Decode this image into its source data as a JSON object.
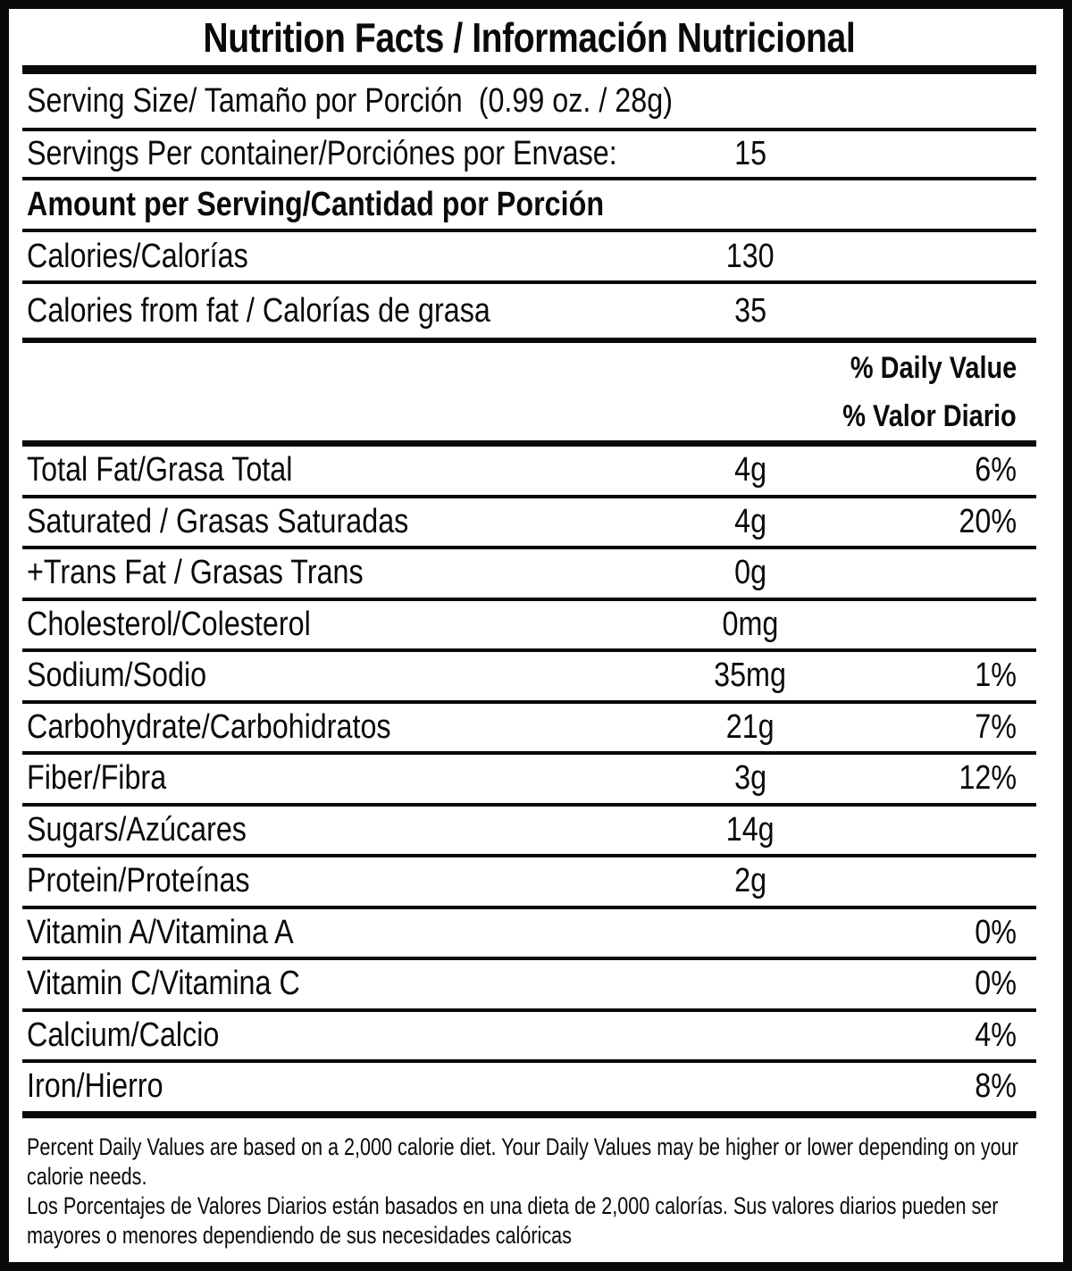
{
  "label": {
    "title": "Nutrition Facts / Información Nutricional",
    "serving_size": "Serving Size/ Tamaño por Porción  (0.99 oz. / 28g)",
    "servings_per_container": {
      "label": "Servings Per container/Porciónes por Envase:",
      "value": "15"
    },
    "amount_per_serving": "Amount per Serving/Cantidad por Porción",
    "calories": {
      "label": "Calories/Calorías",
      "value": "130"
    },
    "calories_from_fat": {
      "label": "Calories from fat / Calorías de grasa",
      "value": "35"
    },
    "daily_value_header_en": "% Daily Value",
    "daily_value_header_es": "% Valor Diario",
    "nutrients": [
      {
        "label": "Total Fat/Grasa Total",
        "amount": "4g",
        "dv": "6%"
      },
      {
        "label": "Saturated / Grasas Saturadas",
        "amount": "4g",
        "dv": "20%"
      },
      {
        "label": "+Trans Fat / Grasas Trans",
        "amount": "0g",
        "dv": ""
      },
      {
        "label": "Cholesterol/Colesterol",
        "amount": "0mg",
        "dv": ""
      },
      {
        "label": "Sodium/Sodio",
        "amount": "35mg",
        "dv": "1%"
      },
      {
        "label": "Carbohydrate/Carbohidratos",
        "amount": "21g",
        "dv": "7%"
      },
      {
        "label": "Fiber/Fibra",
        "amount": "3g",
        "dv": "12%"
      },
      {
        "label": "Sugars/Azúcares",
        "amount": "14g",
        "dv": ""
      },
      {
        "label": "Protein/Proteínas",
        "amount": "2g",
        "dv": ""
      },
      {
        "label": "Vitamin A/Vitamina A",
        "amount": "",
        "dv": "0%"
      },
      {
        "label": "Vitamin C/Vitamina C",
        "amount": "",
        "dv": "0%"
      },
      {
        "label": "Calcium/Calcio",
        "amount": "",
        "dv": "4%"
      },
      {
        "label": "Iron/Hierro",
        "amount": "",
        "dv": "8%"
      }
    ],
    "footnote": {
      "lines": [
        "Percent Daily Values are based on a 2,000 calorie diet. Your Daily Values may be higher or lower depending on your",
        "calorie needs.",
        "Los Porcentajes de Valores Diarios están basados en una dieta de 2,000 calorías. Sus valores diarios pueden ser",
        "mayores o menores dependiendo de sus necesidades calóricas"
      ]
    },
    "colors": {
      "ink": "#0a0a0a",
      "paper": "#ffffff"
    }
  }
}
